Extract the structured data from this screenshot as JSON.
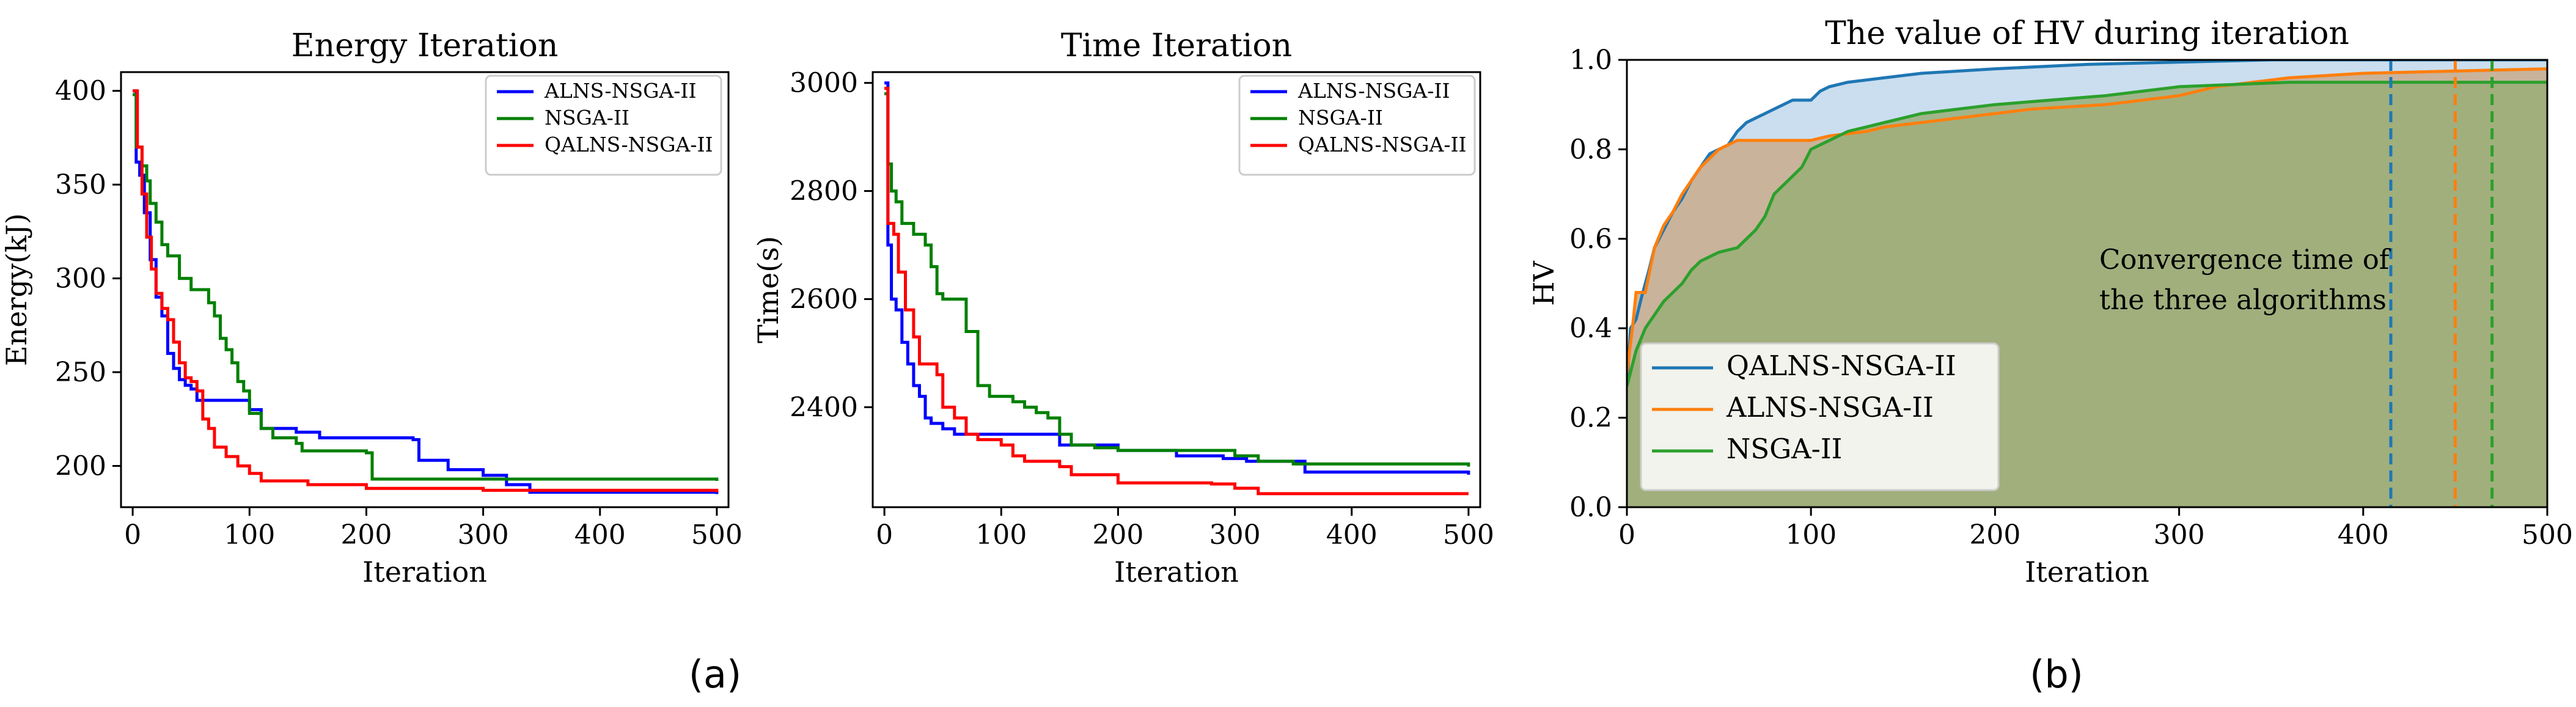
{
  "chart_data": [
    {
      "type": "line",
      "title": "Energy Iteration",
      "xlabel": "Iteration",
      "ylabel": "Energy(kJ)",
      "xlim": [
        -10,
        510
      ],
      "ylim": [
        178,
        410
      ],
      "xticks": [
        0,
        100,
        200,
        300,
        400,
        500
      ],
      "yticks": [
        200,
        250,
        300,
        350,
        400
      ],
      "legend_position": "top-right",
      "series": [
        {
          "name": "ALNS-NSGA-II",
          "color": "#0000ff",
          "points": [
            [
              0,
              400
            ],
            [
              3,
              362
            ],
            [
              6,
              355
            ],
            [
              10,
              335
            ],
            [
              15,
              310
            ],
            [
              20,
              290
            ],
            [
              25,
              280
            ],
            [
              30,
              260
            ],
            [
              35,
              252
            ],
            [
              40,
              246
            ],
            [
              45,
              243
            ],
            [
              50,
              241
            ],
            [
              55,
              235
            ],
            [
              90,
              235
            ],
            [
              100,
              230
            ],
            [
              110,
              220
            ],
            [
              140,
              218
            ],
            [
              160,
              215
            ],
            [
              240,
              214
            ],
            [
              245,
              203
            ],
            [
              270,
              198
            ],
            [
              300,
              195
            ],
            [
              320,
              190
            ],
            [
              340,
              186
            ],
            [
              500,
              185
            ]
          ]
        },
        {
          "name": "NSGA-II",
          "color": "#008000",
          "points": [
            [
              0,
              398
            ],
            [
              3,
              370
            ],
            [
              8,
              360
            ],
            [
              12,
              352
            ],
            [
              15,
              340
            ],
            [
              20,
              330
            ],
            [
              25,
              318
            ],
            [
              30,
              312
            ],
            [
              40,
              300
            ],
            [
              50,
              294
            ],
            [
              65,
              287
            ],
            [
              70,
              280
            ],
            [
              75,
              268
            ],
            [
              80,
              262
            ],
            [
              85,
              255
            ],
            [
              90,
              245
            ],
            [
              95,
              240
            ],
            [
              100,
              228
            ],
            [
              110,
              220
            ],
            [
              120,
              215
            ],
            [
              140,
              212
            ],
            [
              145,
              208
            ],
            [
              200,
              207
            ],
            [
              205,
              193
            ],
            [
              500,
              192
            ]
          ]
        },
        {
          "name": "QALNS-NSGA-II",
          "color": "#ff0000",
          "points": [
            [
              0,
              400
            ],
            [
              4,
              370
            ],
            [
              8,
              345
            ],
            [
              12,
              322
            ],
            [
              16,
              305
            ],
            [
              20,
              292
            ],
            [
              25,
              284
            ],
            [
              30,
              278
            ],
            [
              35,
              266
            ],
            [
              40,
              255
            ],
            [
              45,
              247
            ],
            [
              50,
              245
            ],
            [
              55,
              240
            ],
            [
              60,
              225
            ],
            [
              65,
              220
            ],
            [
              70,
              210
            ],
            [
              80,
              205
            ],
            [
              90,
              200
            ],
            [
              100,
              196
            ],
            [
              110,
              192
            ],
            [
              150,
              190
            ],
            [
              200,
              188
            ],
            [
              300,
              187
            ],
            [
              500,
              186
            ]
          ]
        }
      ]
    },
    {
      "type": "line",
      "title": "Time Iteration",
      "xlabel": "Iteration",
      "ylabel": "Time(s)",
      "xlim": [
        -10,
        510
      ],
      "ylim": [
        2215,
        3020
      ],
      "xticks": [
        0,
        100,
        200,
        300,
        400,
        500
      ],
      "yticks": [
        2400,
        2600,
        2800,
        3000
      ],
      "legend_position": "top-right",
      "series": [
        {
          "name": "ALNS-NSGA-II",
          "color": "#0000ff",
          "points": [
            [
              0,
              3000
            ],
            [
              3,
              2700
            ],
            [
              6,
              2600
            ],
            [
              10,
              2580
            ],
            [
              15,
              2520
            ],
            [
              20,
              2480
            ],
            [
              25,
              2440
            ],
            [
              30,
              2420
            ],
            [
              35,
              2380
            ],
            [
              40,
              2370
            ],
            [
              50,
              2360
            ],
            [
              60,
              2350
            ],
            [
              120,
              2350
            ],
            [
              150,
              2330
            ],
            [
              200,
              2320
            ],
            [
              250,
              2310
            ],
            [
              290,
              2305
            ],
            [
              310,
              2300
            ],
            [
              360,
              2280
            ],
            [
              500,
              2275
            ]
          ]
        },
        {
          "name": "NSGA-II",
          "color": "#008000",
          "points": [
            [
              0,
              2980
            ],
            [
              3,
              2850
            ],
            [
              6,
              2800
            ],
            [
              10,
              2780
            ],
            [
              15,
              2740
            ],
            [
              25,
              2720
            ],
            [
              35,
              2700
            ],
            [
              40,
              2660
            ],
            [
              45,
              2610
            ],
            [
              50,
              2600
            ],
            [
              70,
              2540
            ],
            [
              80,
              2440
            ],
            [
              90,
              2420
            ],
            [
              110,
              2410
            ],
            [
              120,
              2400
            ],
            [
              130,
              2390
            ],
            [
              140,
              2380
            ],
            [
              150,
              2350
            ],
            [
              160,
              2330
            ],
            [
              180,
              2325
            ],
            [
              200,
              2320
            ],
            [
              300,
              2310
            ],
            [
              320,
              2300
            ],
            [
              350,
              2295
            ],
            [
              500,
              2290
            ]
          ]
        },
        {
          "name": "QALNS-NSGA-II",
          "color": "#ff0000",
          "points": [
            [
              0,
              2990
            ],
            [
              3,
              2740
            ],
            [
              8,
              2720
            ],
            [
              12,
              2650
            ],
            [
              18,
              2580
            ],
            [
              25,
              2530
            ],
            [
              30,
              2480
            ],
            [
              45,
              2460
            ],
            [
              50,
              2400
            ],
            [
              60,
              2380
            ],
            [
              70,
              2350
            ],
            [
              80,
              2340
            ],
            [
              100,
              2330
            ],
            [
              110,
              2310
            ],
            [
              120,
              2300
            ],
            [
              150,
              2290
            ],
            [
              160,
              2275
            ],
            [
              200,
              2260
            ],
            [
              280,
              2258
            ],
            [
              300,
              2250
            ],
            [
              320,
              2240
            ],
            [
              500,
              2240
            ]
          ]
        }
      ]
    },
    {
      "type": "area",
      "title": "The value of HV during iteration",
      "xlabel": "Iteration",
      "ylabel": "HV",
      "xlim": [
        0,
        500
      ],
      "ylim": [
        0,
        1
      ],
      "xticks": [
        0,
        100,
        200,
        300,
        400,
        500
      ],
      "yticks": [
        0.0,
        0.2,
        0.4,
        0.6,
        0.8,
        1.0
      ],
      "legend_position": "lower-left",
      "annotation": [
        "Convergence time of",
        "the three algorithms"
      ],
      "convergence_lines": [
        {
          "x": 415,
          "color": "#1f77b4"
        },
        {
          "x": 450,
          "color": "#ff7f0e"
        },
        {
          "x": 470,
          "color": "#2ca02c"
        }
      ],
      "series": [
        {
          "name": "QALNS-NSGA-II",
          "color": "#1f77b4",
          "fill": "#a6c8e4",
          "points": [
            [
              0,
              0.27
            ],
            [
              2,
              0.4
            ],
            [
              5,
              0.42
            ],
            [
              8,
              0.47
            ],
            [
              12,
              0.53
            ],
            [
              15,
              0.58
            ],
            [
              20,
              0.62
            ],
            [
              25,
              0.66
            ],
            [
              30,
              0.69
            ],
            [
              35,
              0.73
            ],
            [
              40,
              0.76
            ],
            [
              45,
              0.79
            ],
            [
              50,
              0.8
            ],
            [
              55,
              0.81
            ],
            [
              60,
              0.84
            ],
            [
              65,
              0.86
            ],
            [
              70,
              0.87
            ],
            [
              75,
              0.88
            ],
            [
              80,
              0.89
            ],
            [
              85,
              0.9
            ],
            [
              90,
              0.91
            ],
            [
              100,
              0.91
            ],
            [
              105,
              0.93
            ],
            [
              110,
              0.94
            ],
            [
              120,
              0.95
            ],
            [
              140,
              0.96
            ],
            [
              160,
              0.97
            ],
            [
              200,
              0.98
            ],
            [
              250,
              0.99
            ],
            [
              300,
              0.995
            ],
            [
              350,
              1.0
            ],
            [
              500,
              1.0
            ]
          ]
        },
        {
          "name": "ALNS-NSGA-II",
          "color": "#ff7f0e",
          "fill": "#c9ab8c",
          "points": [
            [
              0,
              0.3
            ],
            [
              3,
              0.4
            ],
            [
              5,
              0.48
            ],
            [
              10,
              0.48
            ],
            [
              12,
              0.52
            ],
            [
              15,
              0.58
            ],
            [
              20,
              0.63
            ],
            [
              25,
              0.66
            ],
            [
              30,
              0.7
            ],
            [
              35,
              0.73
            ],
            [
              40,
              0.76
            ],
            [
              45,
              0.78
            ],
            [
              50,
              0.8
            ],
            [
              55,
              0.81
            ],
            [
              60,
              0.82
            ],
            [
              100,
              0.82
            ],
            [
              110,
              0.83
            ],
            [
              130,
              0.84
            ],
            [
              140,
              0.85
            ],
            [
              160,
              0.86
            ],
            [
              180,
              0.87
            ],
            [
              200,
              0.88
            ],
            [
              220,
              0.89
            ],
            [
              260,
              0.9
            ],
            [
              300,
              0.92
            ],
            [
              320,
              0.94
            ],
            [
              360,
              0.96
            ],
            [
              400,
              0.97
            ],
            [
              450,
              0.975
            ],
            [
              500,
              0.98
            ]
          ]
        },
        {
          "name": "NSGA-II",
          "color": "#2ca02c",
          "fill": "#9aae78",
          "points": [
            [
              0,
              0.27
            ],
            [
              5,
              0.35
            ],
            [
              10,
              0.4
            ],
            [
              15,
              0.43
            ],
            [
              20,
              0.46
            ],
            [
              25,
              0.48
            ],
            [
              30,
              0.5
            ],
            [
              35,
              0.53
            ],
            [
              40,
              0.55
            ],
            [
              50,
              0.57
            ],
            [
              60,
              0.58
            ],
            [
              65,
              0.6
            ],
            [
              70,
              0.62
            ],
            [
              75,
              0.65
            ],
            [
              80,
              0.7
            ],
            [
              85,
              0.72
            ],
            [
              90,
              0.74
            ],
            [
              95,
              0.76
            ],
            [
              100,
              0.8
            ],
            [
              110,
              0.82
            ],
            [
              120,
              0.84
            ],
            [
              140,
              0.86
            ],
            [
              160,
              0.88
            ],
            [
              180,
              0.89
            ],
            [
              200,
              0.9
            ],
            [
              230,
              0.91
            ],
            [
              260,
              0.92
            ],
            [
              280,
              0.93
            ],
            [
              300,
              0.94
            ],
            [
              330,
              0.945
            ],
            [
              360,
              0.95
            ],
            [
              500,
              0.95
            ]
          ]
        }
      ]
    }
  ],
  "captions": {
    "a": "(a)",
    "b": "(b)"
  }
}
